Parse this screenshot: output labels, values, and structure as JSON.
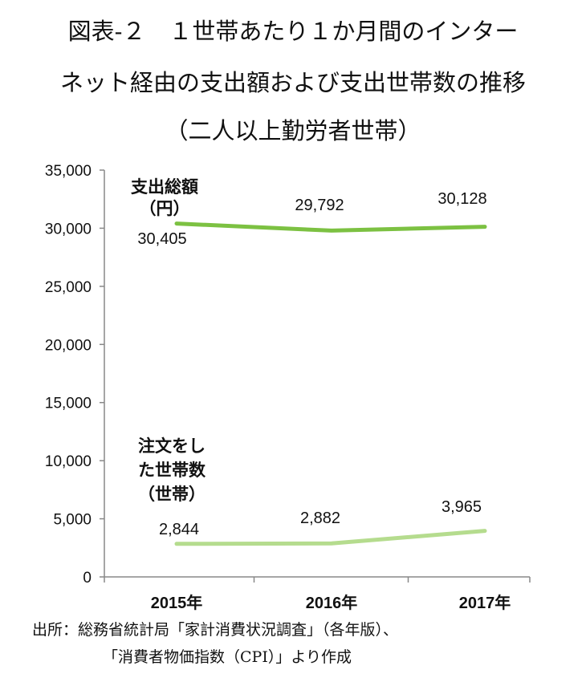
{
  "title": {
    "line1": "図表‑２　１世帯あたり１か月間のインター",
    "line2": "ネット経由の支出額および支出世帯数の推移",
    "line3": "（二人以上勤労者世帯）"
  },
  "source": {
    "line1": "出所：総務省統計局「家計消費状況調査」（各年版）、",
    "line2": "「消費者物価指数（CPI）」より作成"
  },
  "chart_data": {
    "type": "line",
    "categories": [
      "2015年",
      "2016年",
      "2017年"
    ],
    "y_ticks": [
      "0",
      "5,000",
      "10,000",
      "15,000",
      "20,000",
      "25,000",
      "30,000",
      "35,000"
    ],
    "ylim": [
      0,
      35000
    ],
    "grid": false,
    "series": [
      {
        "name_lines": [
          "支出総額",
          "（円）"
        ],
        "values": [
          30405,
          29792,
          30128
        ],
        "value_labels": [
          "30,405",
          "29,792",
          "30,128"
        ],
        "color": "#7cc142"
      },
      {
        "name_lines": [
          "注文をし",
          "た世帯数",
          "（世帯）"
        ],
        "values": [
          2844,
          2882,
          3965
        ],
        "value_labels": [
          "2,844",
          "2,882",
          "3,965"
        ],
        "color": "#b5dc8e"
      }
    ]
  }
}
